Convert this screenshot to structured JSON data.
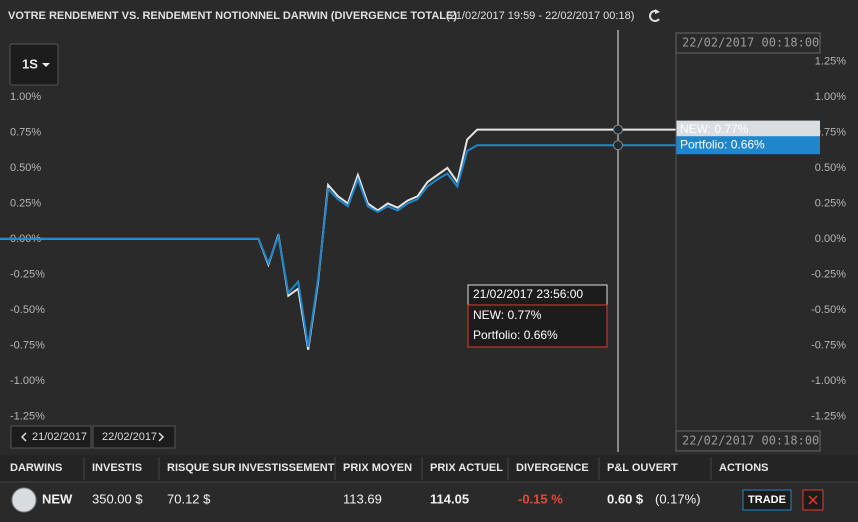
{
  "header": {
    "title": "VOTRE RENDEMENT VS. RENDEMENT NOTIONNEL DARWIN (DIVERGENCE TOTALE)",
    "range": "(21/02/2017 19:59 - 22/02/2017 00:18)"
  },
  "period_button": "1S",
  "chart_data": {
    "type": "line",
    "series": [
      {
        "name": "NEW",
        "color": "#e6e6e6",
        "values": [
          0,
          0,
          0,
          0,
          0,
          0,
          0,
          0,
          0,
          0,
          0,
          0,
          0,
          0,
          0,
          0,
          0,
          0,
          0,
          0,
          0,
          0,
          0,
          0,
          0,
          0,
          0,
          -0.18,
          0.03,
          -0.4,
          -0.35,
          -0.78,
          -0.3,
          0.38,
          0.3,
          0.25,
          0.45,
          0.25,
          0.2,
          0.25,
          0.22,
          0.27,
          0.3,
          0.4,
          0.45,
          0.5,
          0.4,
          0.7,
          0.77,
          0.77,
          0.77,
          0.77,
          0.77,
          0.77,
          0.77,
          0.77,
          0.77,
          0.77,
          0.77,
          0.77,
          0.77,
          0.77,
          0.77,
          0.77,
          0.77,
          0.77,
          0.77,
          0.77,
          0.77
        ]
      },
      {
        "name": "Portfolio",
        "color": "#1f86cc",
        "values": [
          0,
          0,
          0,
          0,
          0,
          0,
          0,
          0,
          0,
          0,
          0,
          0,
          0,
          0,
          0,
          0,
          0,
          0,
          0,
          0,
          0,
          0,
          0,
          0,
          0,
          0,
          0,
          -0.17,
          0.02,
          -0.38,
          -0.3,
          -0.76,
          -0.28,
          0.35,
          0.28,
          0.23,
          0.42,
          0.23,
          0.19,
          0.23,
          0.2,
          0.25,
          0.28,
          0.37,
          0.42,
          0.46,
          0.37,
          0.62,
          0.66,
          0.66,
          0.66,
          0.66,
          0.66,
          0.66,
          0.66,
          0.66,
          0.66,
          0.66,
          0.66,
          0.66,
          0.66,
          0.66,
          0.66,
          0.66,
          0.66,
          0.66,
          0.66,
          0.66,
          0.66
        ]
      }
    ],
    "ylim": [
      -1.5,
      1.45
    ],
    "yticks": [
      {
        "value": 1.25,
        "label": "1.25%"
      },
      {
        "value": 1,
        "label": "1.00%"
      },
      {
        "value": 0.75,
        "label": "0.75%"
      },
      {
        "value": 0.5,
        "label": "0.50%"
      },
      {
        "value": 0.25,
        "label": "0.25%"
      },
      {
        "value": 0,
        "label": "0.00%"
      },
      {
        "value": -0.25,
        "label": "-0.25%"
      },
      {
        "value": -0.5,
        "label": "-0.50%"
      },
      {
        "value": -0.75,
        "label": "-0.75%"
      },
      {
        "value": -1,
        "label": "-1.00%"
      },
      {
        "value": -1.25,
        "label": "-1.25%"
      }
    ]
  },
  "crosshair": {
    "top_label": "22/02/2017 00:18:00",
    "bottom_label": "22/02/2017 00:18:00",
    "series_labels": [
      "NEW: 0.77%",
      "Portfolio: 0.66%"
    ]
  },
  "tooltip": {
    "time": "21/02/2017 23:56:00",
    "lines": [
      "NEW: 0.77%",
      "Portfolio: 0.66%"
    ]
  },
  "navigation": [
    "21/02/2017",
    "22/02/2017"
  ],
  "table": {
    "columns": [
      "DARWINS",
      "INVESTIS",
      "RISQUE SUR INVESTISSEMENT",
      "PRIX MOYEN",
      "PRIX ACTUEL",
      "DIVERGENCE",
      "P&L OUVERT",
      "ACTIONS"
    ],
    "rows": [
      [
        "NEW",
        "350.00 $",
        "70.12 $",
        "113.69",
        "114.05",
        "-0.15 %",
        "0.60 $",
        "(0.17%)"
      ]
    ],
    "actions": [
      "TRADE"
    ]
  }
}
